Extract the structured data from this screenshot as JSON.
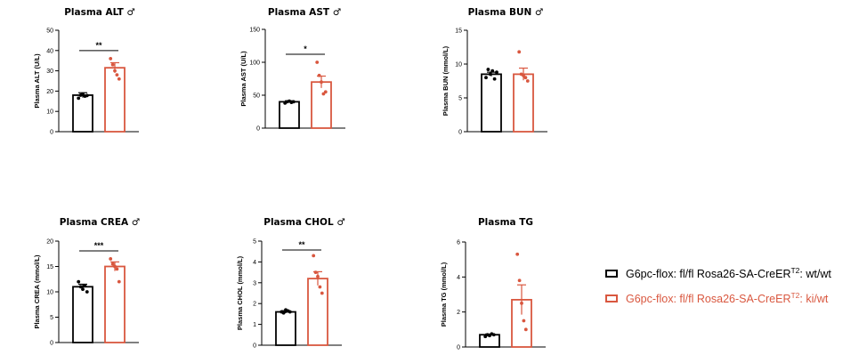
{
  "chart_data": [
    {
      "type": "bar",
      "title": "Plasma ALT",
      "sex_symbol": "♂",
      "ylabel": "Plasma ALT (U/L)",
      "ylim": [
        0,
        50
      ],
      "yticks": [
        0,
        10,
        20,
        30,
        40,
        50
      ],
      "categories": [
        "G6pc-flox: fl/fl Rosa26-SA-CreERT2: wt/wt",
        "G6pc-flox: fl/fl Rosa26-SA-CreERT2: ki/wt"
      ],
      "series": [
        {
          "values": [
            18,
            31.5
          ],
          "sem": [
            1.2,
            2.5
          ]
        }
      ],
      "points": [
        [
          16.5,
          18,
          18.5,
          17.5,
          17.8
        ],
        [
          36,
          33,
          30,
          28,
          26
        ]
      ],
      "significance": "**"
    },
    {
      "type": "bar",
      "title": "Plasma AST",
      "sex_symbol": "♂",
      "ylabel": "Plasma AST (U/L)",
      "ylim": [
        0,
        150
      ],
      "yticks": [
        0,
        50,
        100,
        150
      ],
      "categories": [
        "G6pc-flox: fl/fl Rosa26-SA-CreERT2: wt/wt",
        "G6pc-flox: fl/fl Rosa26-SA-CreERT2: ki/wt"
      ],
      "series": [
        {
          "values": [
            40,
            70
          ],
          "sem": [
            1.5,
            9
          ]
        }
      ],
      "points": [
        [
          38,
          40,
          41,
          39,
          40
        ],
        [
          100,
          80,
          70,
          52,
          55
        ]
      ],
      "significance": "*"
    },
    {
      "type": "bar",
      "title": "Plasma BUN",
      "sex_symbol": "♂",
      "ylabel": "Plasma BUN (mmol/L)",
      "ylim": [
        0,
        15
      ],
      "yticks": [
        0,
        5,
        10,
        15
      ],
      "categories": [
        "G6pc-flox: fl/fl Rosa26-SA-CreERT2: wt/wt",
        "G6pc-flox: fl/fl Rosa26-SA-CreERT2: ki/wt"
      ],
      "series": [
        {
          "values": [
            8.5,
            8.5
          ],
          "sem": [
            0.3,
            0.9
          ]
        }
      ],
      "points": [
        [
          8,
          9.2,
          8.5,
          9,
          7.8,
          8.8
        ],
        [
          11.8,
          8.5,
          8.3,
          8,
          7.5
        ]
      ],
      "significance": ""
    },
    {
      "type": "bar",
      "title": "Plasma CREA",
      "sex_symbol": "♂",
      "ylabel": "Plasma CREA (mmol/L)",
      "ylim": [
        0,
        20
      ],
      "yticks": [
        0,
        5,
        10,
        15,
        20
      ],
      "categories": [
        "G6pc-flox: fl/fl Rosa26-SA-CreERT2: wt/wt",
        "G6pc-flox: fl/fl Rosa26-SA-CreERT2: ki/wt"
      ],
      "series": [
        {
          "values": [
            11,
            15
          ],
          "sem": [
            0.5,
            0.9
          ]
        }
      ],
      "points": [
        [
          12,
          11,
          10.5,
          11.2,
          10
        ],
        [
          16.5,
          15.5,
          15,
          14.5,
          12
        ]
      ],
      "significance": "***"
    },
    {
      "type": "bar",
      "title": "Plasma CHOL",
      "sex_symbol": "♂",
      "ylabel": "Plasma CHOL (mmol/L)",
      "ylim": [
        0,
        5
      ],
      "yticks": [
        0,
        1,
        2,
        3,
        4,
        5
      ],
      "categories": [
        "G6pc-flox: fl/fl Rosa26-SA-CreERT2: wt/wt",
        "G6pc-flox: fl/fl Rosa26-SA-CreERT2: ki/wt"
      ],
      "series": [
        {
          "values": [
            1.6,
            3.2
          ],
          "sem": [
            0.06,
            0.33
          ]
        }
      ],
      "points": [
        [
          1.6,
          1.55,
          1.7,
          1.65,
          1.6
        ],
        [
          4.3,
          3.5,
          3.3,
          2.8,
          2.5
        ]
      ],
      "significance": "**"
    },
    {
      "type": "bar",
      "title": "Plasma TG",
      "sex_symbol": "",
      "ylabel": "Plasma TG (mmol/L)",
      "ylim": [
        0,
        6
      ],
      "yticks": [
        0,
        2,
        4,
        6
      ],
      "categories": [
        "G6pc-flox: fl/fl Rosa26-SA-CreERT2: wt/wt",
        "G6pc-flox: fl/fl Rosa26-SA-CreERT2: ki/wt"
      ],
      "series": [
        {
          "values": [
            0.7,
            2.7
          ],
          "sem": [
            0.04,
            0.85
          ]
        }
      ],
      "points": [
        [
          0.6,
          0.7,
          0.65,
          0.75,
          0.7
        ],
        [
          5.3,
          3.8,
          2.5,
          1.5,
          1.0
        ]
      ],
      "significance": ""
    }
  ],
  "legend": {
    "items": [
      {
        "prefix": "G6pc-flox: fl/fl Rosa26-SA-CreER",
        "superscript": "T2",
        "suffix": ": wt/wt",
        "color": "#000000"
      },
      {
        "prefix": "G6pc-flox: fl/fl Rosa26-SA-CreER",
        "superscript": "T2",
        "suffix": ": ki/wt",
        "color": "#d9573f"
      }
    ]
  },
  "colors": {
    "control": "#000000",
    "treatment": "#d9573f"
  }
}
